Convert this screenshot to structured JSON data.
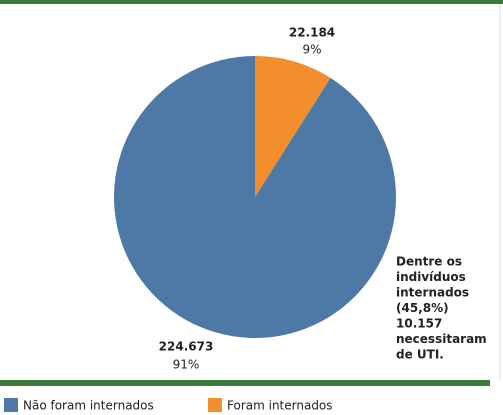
{
  "chart_data": {
    "type": "pie",
    "categories": [
      "Não foram internados",
      "Foram internados"
    ],
    "values": [
      224673,
      22184
    ],
    "value_labels": [
      "224.673",
      "22.184"
    ],
    "percents": [
      91,
      9
    ],
    "percent_labels": [
      "91%",
      "9%"
    ],
    "colors": [
      "#4e79a7",
      "#f28e2b"
    ],
    "annotation": [
      "Dentre os",
      "indivíduos",
      "internados",
      "(45,8%)",
      "10.157",
      "necessitaram",
      "de UTI."
    ],
    "legend": "bottom"
  }
}
